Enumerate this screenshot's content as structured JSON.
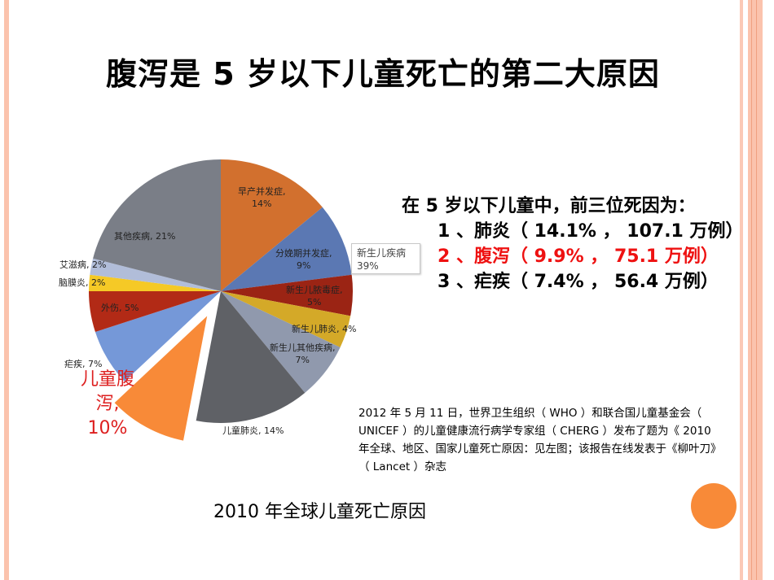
{
  "title": "腹泻是 5 岁以下儿童死亡的第二大原因",
  "summary": {
    "heading": "在 5 岁以下儿童中，前三位死因为：",
    "items": [
      "1 、肺炎（ 14.1% ， 107.1 万例）",
      "2 、腹泻（ 9.9% ， 75.1 万例）",
      "3 、疟疾（ 7.4% ， 56.4 万例）"
    ],
    "highlight_color": "#ee1111"
  },
  "note": "2012 年 5 月 11 日，世界卫生组织（ WHO ）和联合国儿童基金会（ UNICEF ）的儿童健康流行病学专家组（ CHERG ）发布了题为《 2010 年全球、地区、国家儿童死亡原因：见左图；该报告在线发表于《柳叶刀》（ Lancet ）杂志",
  "caption": "2010 年全球儿童死亡原因",
  "chart_data": {
    "type": "pie",
    "title": "",
    "start": "top",
    "direction": "clockwise",
    "slices": [
      {
        "label": "早产并发症, 14%",
        "value": 14,
        "color": "#d2702e"
      },
      {
        "label": "分娩期并发症, 9%",
        "value": 9,
        "color": "#5b78b3"
      },
      {
        "label": "新生儿脓毒症, 5%",
        "value": 5,
        "color": "#9b2414"
      },
      {
        "label": "新生儿肺炎, 4%",
        "value": 4,
        "color": "#d4a928"
      },
      {
        "label": "新生儿其他疾病, 7%",
        "value": 7,
        "color": "#9099ad"
      },
      {
        "label": "儿童肺炎, 14%",
        "value": 14,
        "color": "#5f6166"
      },
      {
        "label": "儿童腹泻, 10%",
        "value": 10,
        "color": "#f88a38",
        "exploded": true
      },
      {
        "label": "疟疾, 7%",
        "value": 7,
        "color": "#7598d8"
      },
      {
        "label": "外伤, 5%",
        "value": 5,
        "color": "#b22a16"
      },
      {
        "label": "脑膜炎, 2%",
        "value": 2,
        "color": "#f5c926"
      },
      {
        "label": "艾滋病, 2%",
        "value": 2,
        "color": "#b1bdd9"
      },
      {
        "label": "其他疾病, 21%",
        "value": 21,
        "color": "#7a7e87"
      }
    ],
    "labels": {
      "s0a": "早产并发症,",
      "s0b": "14%",
      "s1a": "分娩期并发症,",
      "s1b": "9%",
      "s2a": "新生儿脓毒症,",
      "s2b": "5%",
      "s3": "新生儿肺炎, 4%",
      "s4a": "新生儿其他疾病,",
      "s4b": "7%",
      "s5": "儿童肺炎, 14%",
      "s6a": "儿童腹",
      "s6b": "泻,",
      "s6c": "10%",
      "s7": "疟疾, 7%",
      "s8": "外伤, 5%",
      "s9": "脑膜炎, 2%",
      "s10": "艾滋病, 2%",
      "s11": "其他疾病, 21%"
    },
    "callout": {
      "line1": "新生儿疾病",
      "line2": "39%"
    }
  }
}
